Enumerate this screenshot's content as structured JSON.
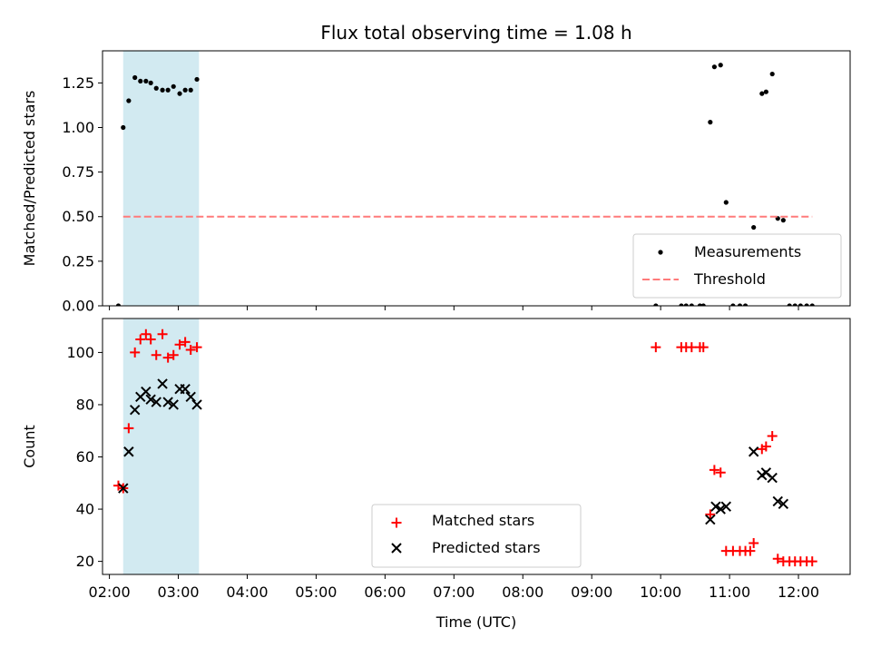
{
  "title": "Flux total observing time = 1.08 h",
  "colors": {
    "measurement": "#000000",
    "threshold": "#ff7b7b",
    "matched": "#ff0000",
    "predicted": "#000000",
    "span_fill": "#add8e6"
  },
  "chart_data": [
    {
      "type": "scatter",
      "panel": "top",
      "ylabel": "Matched/Predicted stars",
      "xlim": [
        1.9,
        12.75
      ],
      "ylim": [
        0,
        1.43
      ],
      "yticks": [
        0.0,
        0.25,
        0.5,
        0.75,
        1.0,
        1.25
      ],
      "ytick_labels": [
        "0.00",
        "0.25",
        "0.50",
        "0.75",
        "1.00",
        "1.25"
      ],
      "shaded_span": [
        2.2,
        3.3
      ],
      "legend": {
        "position": "lower right",
        "entries": [
          "Measurements",
          "Threshold"
        ]
      },
      "series": [
        {
          "name": "Measurements",
          "marker": "dot",
          "x": [
            2.13,
            2.2,
            2.28,
            2.37,
            2.45,
            2.53,
            2.6,
            2.68,
            2.77,
            2.85,
            2.93,
            3.02,
            3.1,
            3.18,
            3.27,
            9.93,
            10.3,
            10.37,
            10.45,
            10.57,
            10.62,
            10.72,
            10.78,
            10.87,
            10.95,
            11.05,
            11.15,
            11.23,
            11.35,
            11.47,
            11.53,
            11.62,
            11.7,
            11.78,
            11.87,
            11.95,
            12.03,
            12.12,
            12.2
          ],
          "y": [
            0.0,
            1.0,
            1.15,
            1.28,
            1.26,
            1.26,
            1.25,
            1.22,
            1.21,
            1.21,
            1.23,
            1.19,
            1.21,
            1.21,
            1.27,
            0.0,
            0.0,
            0.0,
            0.0,
            0.0,
            0.0,
            1.03,
            1.34,
            1.35,
            0.58,
            0.0,
            0.0,
            0.0,
            0.44,
            1.19,
            1.2,
            1.3,
            0.49,
            0.48,
            0.0,
            0.0,
            0.0,
            0.0,
            0.0
          ]
        },
        {
          "name": "Threshold",
          "type": "line",
          "style": "dashed",
          "x": [
            2.2,
            12.2
          ],
          "y": [
            0.5,
            0.5
          ]
        }
      ]
    },
    {
      "type": "scatter",
      "panel": "bottom",
      "xlabel": "Time (UTC)",
      "ylabel": "Count",
      "xlim": [
        1.9,
        12.75
      ],
      "ylim": [
        15,
        113
      ],
      "xticks": [
        2,
        3,
        4,
        5,
        6,
        7,
        8,
        9,
        10,
        11,
        12
      ],
      "xtick_labels": [
        "02:00",
        "03:00",
        "04:00",
        "05:00",
        "06:00",
        "07:00",
        "08:00",
        "09:00",
        "10:00",
        "11:00",
        "12:00"
      ],
      "yticks": [
        20,
        40,
        60,
        80,
        100
      ],
      "ytick_labels": [
        "20",
        "40",
        "60",
        "80",
        "100"
      ],
      "shaded_span": [
        2.2,
        3.3
      ],
      "legend": {
        "position": "lower center",
        "entries": [
          "Matched stars",
          "Predicted stars"
        ]
      },
      "series": [
        {
          "name": "Matched stars",
          "marker": "plus",
          "x": [
            2.13,
            2.2,
            2.28,
            2.37,
            2.45,
            2.53,
            2.6,
            2.68,
            2.77,
            2.85,
            2.93,
            3.02,
            3.1,
            3.18,
            3.27,
            9.93,
            10.3,
            10.37,
            10.45,
            10.57,
            10.62,
            10.72,
            10.78,
            10.87,
            10.95,
            11.05,
            11.15,
            11.23,
            11.3,
            11.35,
            11.47,
            11.53,
            11.62,
            11.7,
            11.78,
            11.87,
            11.95,
            12.03,
            12.12,
            12.2
          ],
          "y": [
            49,
            48,
            71,
            100,
            105,
            107,
            105,
            99,
            107,
            98,
            99,
            103,
            104,
            101,
            102,
            102,
            102,
            102,
            102,
            102,
            102,
            38,
            55,
            54,
            24,
            24,
            24,
            24,
            24,
            27,
            63,
            64,
            68,
            21,
            20,
            20,
            20,
            20,
            20,
            20
          ]
        },
        {
          "name": "Predicted stars",
          "marker": "x",
          "x": [
            2.2,
            2.28,
            2.37,
            2.45,
            2.53,
            2.6,
            2.68,
            2.77,
            2.85,
            2.93,
            3.02,
            3.1,
            3.18,
            3.27,
            10.72,
            10.8,
            10.87,
            10.95,
            11.35,
            11.47,
            11.53,
            11.62,
            11.7,
            11.78
          ],
          "y": [
            48,
            62,
            78,
            83,
            85,
            82,
            81,
            88,
            81,
            80,
            86,
            86,
            83,
            80,
            36,
            41,
            40,
            41,
            62,
            53,
            54,
            52,
            43,
            42
          ]
        }
      ]
    }
  ]
}
